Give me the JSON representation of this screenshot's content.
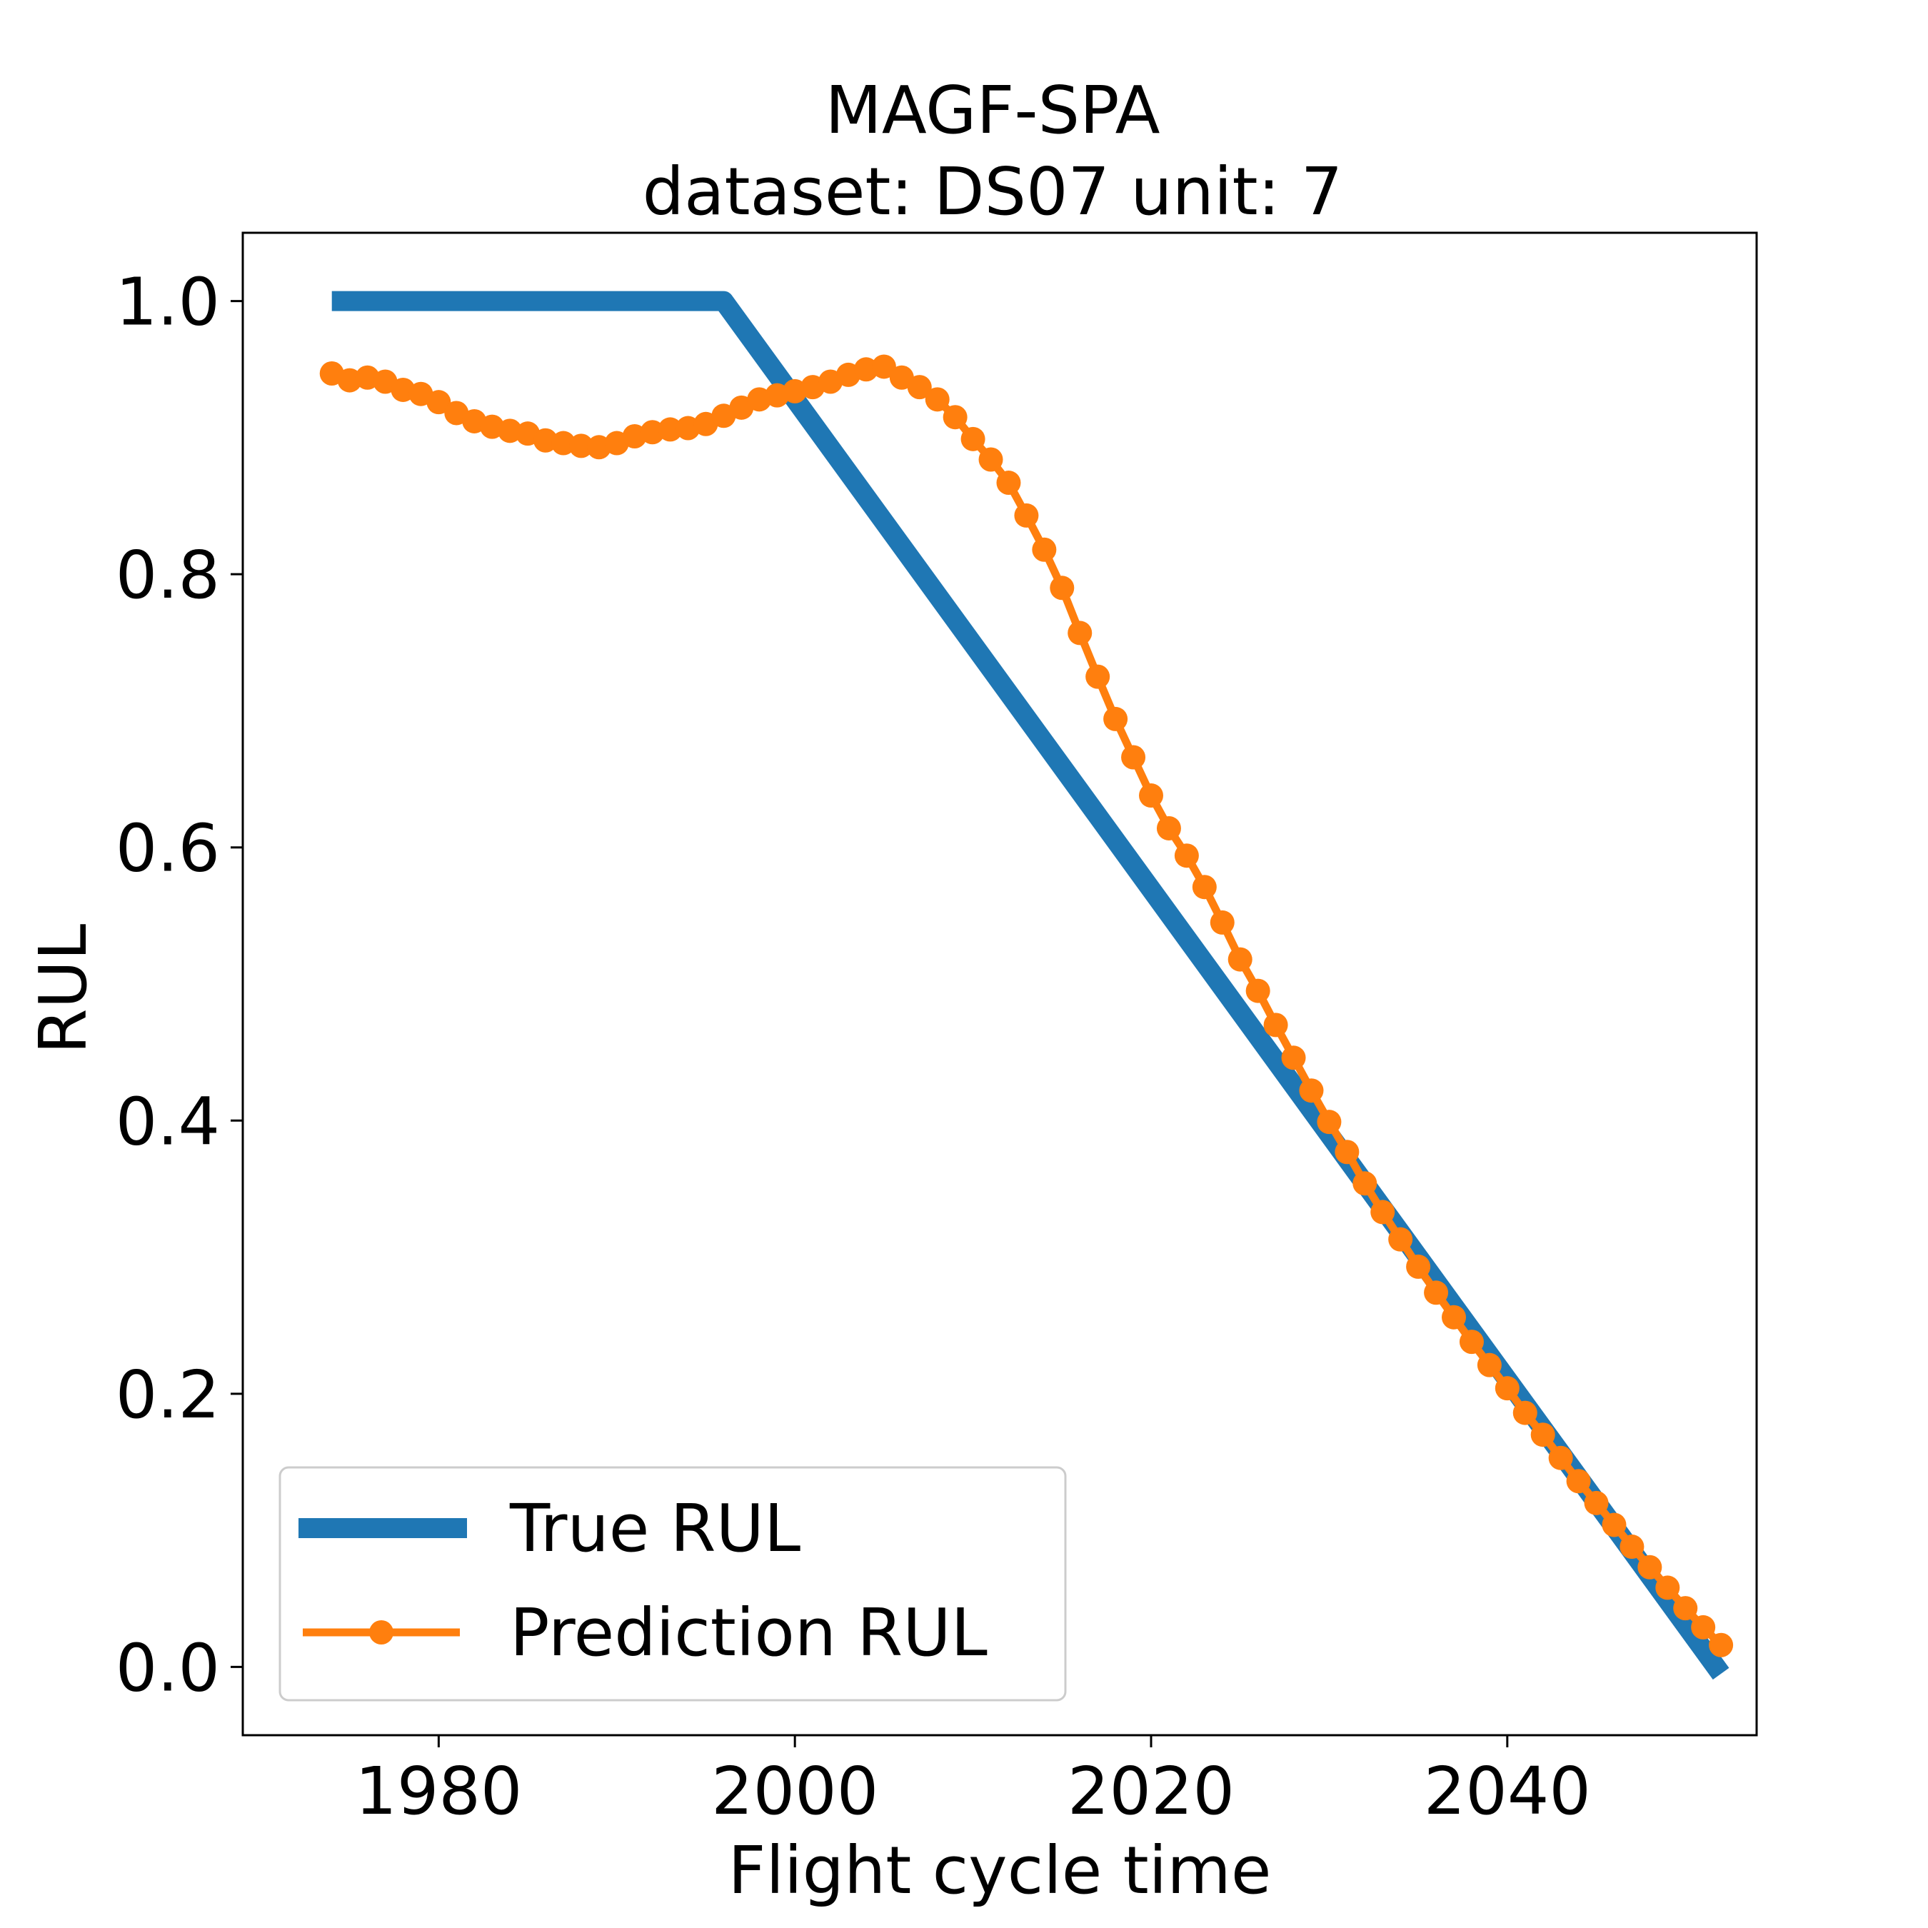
{
  "chart_data": {
    "type": "line",
    "title": "MAGF-SPA",
    "subtitle": "dataset: DS07 unit: 7",
    "xlabel": "Flight cycle time",
    "ylabel": "RUL",
    "xlim": [
      1969,
      2054
    ],
    "ylim": [
      -0.05,
      1.05
    ],
    "xticks": [
      1980,
      2000,
      2020,
      2040
    ],
    "xtick_labels": [
      "1980",
      "2000",
      "2020",
      "2040"
    ],
    "yticks": [
      0.0,
      0.2,
      0.4,
      0.6,
      0.8,
      1.0
    ],
    "ytick_labels": [
      "0.0",
      "0.2",
      "0.4",
      "0.6",
      "0.8",
      "1.0"
    ],
    "grid": false,
    "legend_position": "lower-left",
    "series": [
      {
        "name": "True RUL",
        "color": "#1f77b4",
        "style": "thick-line",
        "x": [
          1974,
          1996,
          2052
        ],
        "y": [
          1.0,
          1.0,
          -0.005
        ]
      },
      {
        "name": "Prediction RUL",
        "color": "#ff7f0e",
        "style": "line-with-markers",
        "x": [
          1974,
          1975,
          1976,
          1977,
          1978,
          1979,
          1980,
          1981,
          1982,
          1983,
          1984,
          1985,
          1986,
          1987,
          1988,
          1989,
          1990,
          1991,
          1992,
          1993,
          1994,
          1995,
          1996,
          1997,
          1998,
          1999,
          2000,
          2001,
          2002,
          2003,
          2004,
          2005,
          2006,
          2007,
          2008,
          2009,
          2010,
          2011,
          2012,
          2013,
          2014,
          2015,
          2016,
          2017,
          2018,
          2019,
          2020,
          2021,
          2022,
          2023,
          2024,
          2025,
          2026,
          2027,
          2028,
          2029,
          2030,
          2031,
          2032,
          2033,
          2034,
          2035,
          2036,
          2037,
          2038,
          2039,
          2040,
          2041,
          2042,
          2043,
          2044,
          2045,
          2046,
          2047,
          2048,
          2049,
          2050,
          2051,
          2052
        ],
        "y": [
          0.947,
          0.942,
          0.944,
          0.941,
          0.935,
          0.932,
          0.926,
          0.918,
          0.912,
          0.908,
          0.905,
          0.903,
          0.898,
          0.896,
          0.894,
          0.893,
          0.896,
          0.901,
          0.904,
          0.906,
          0.907,
          0.91,
          0.916,
          0.922,
          0.928,
          0.931,
          0.934,
          0.937,
          0.941,
          0.946,
          0.95,
          0.952,
          0.944,
          0.937,
          0.928,
          0.915,
          0.899,
          0.884,
          0.867,
          0.843,
          0.818,
          0.79,
          0.757,
          0.725,
          0.694,
          0.666,
          0.638,
          0.614,
          0.594,
          0.571,
          0.545,
          0.518,
          0.495,
          0.47,
          0.446,
          0.422,
          0.399,
          0.377,
          0.354,
          0.333,
          0.313,
          0.293,
          0.274,
          0.256,
          0.238,
          0.221,
          0.204,
          0.186,
          0.17,
          0.153,
          0.136,
          0.12,
          0.104,
          0.088,
          0.073,
          0.058,
          0.043,
          0.029,
          0.016
        ]
      }
    ]
  }
}
